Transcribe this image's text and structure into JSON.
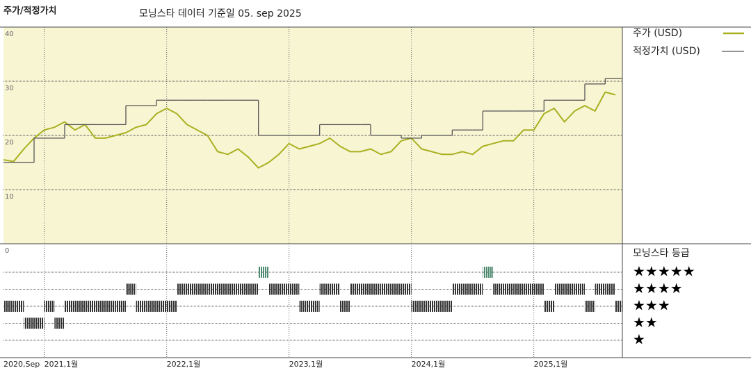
{
  "chart_data": {
    "type": "line",
    "title": "주가/적정가치",
    "subtitle": "모닝스타 데이터 기준일 05. sep 2025",
    "x": [
      "2020-09",
      "2020-10",
      "2020-11",
      "2020-12",
      "2021-01",
      "2021-02",
      "2021-03",
      "2021-04",
      "2021-05",
      "2021-06",
      "2021-07",
      "2021-08",
      "2021-09",
      "2021-10",
      "2021-11",
      "2021-12",
      "2022-01",
      "2022-02",
      "2022-03",
      "2022-04",
      "2022-05",
      "2022-06",
      "2022-07",
      "2022-08",
      "2022-09",
      "2022-10",
      "2022-11",
      "2022-12",
      "2023-01",
      "2023-02",
      "2023-03",
      "2023-04",
      "2023-05",
      "2023-06",
      "2023-07",
      "2023-08",
      "2023-09",
      "2023-10",
      "2023-11",
      "2023-12",
      "2024-01",
      "2024-02",
      "2024-03",
      "2024-04",
      "2024-05",
      "2024-06",
      "2024-07",
      "2024-08",
      "2024-09",
      "2024-10",
      "2024-11",
      "2024-12",
      "2025-01",
      "2025-02",
      "2025-03",
      "2025-04",
      "2025-05",
      "2025-06",
      "2025-07",
      "2025-08",
      "2025-09"
    ],
    "series": [
      {
        "name": "주가 (USD)",
        "color": "#a9b020",
        "step": false,
        "values": [
          15.5,
          15.2,
          17.5,
          19.5,
          21,
          21.5,
          22.5,
          21,
          22,
          19.5,
          19.5,
          20,
          20.5,
          21.5,
          22,
          24,
          25,
          24,
          22,
          21,
          20,
          17,
          16.5,
          17.5,
          16,
          14,
          15,
          16.5,
          18.5,
          17.5,
          18,
          18.5,
          19.5,
          18,
          17,
          17,
          17.5,
          16.5,
          17,
          19,
          19.5,
          17.5,
          17,
          16.5,
          16.5,
          17,
          16.5,
          18,
          18.5,
          19,
          19,
          21,
          21,
          24,
          25,
          22.5,
          24.5,
          25.5,
          24.5,
          28,
          27.5
        ]
      },
      {
        "name": "적정가치 (USD)",
        "color": "#555555",
        "step": true,
        "values": [
          15,
          15,
          15,
          19.5,
          19.5,
          19.5,
          22,
          22,
          22,
          22,
          22,
          22,
          25.5,
          25.5,
          25.5,
          26.5,
          26.5,
          26.5,
          26.5,
          26.5,
          26.5,
          26.5,
          26.5,
          26.5,
          26.5,
          20,
          20,
          20,
          20,
          20,
          20,
          22,
          22,
          22,
          22,
          22,
          20,
          20,
          20,
          19.5,
          19.5,
          20,
          20,
          20,
          21,
          21,
          21,
          24.5,
          24.5,
          24.5,
          24.5,
          24.5,
          24.5,
          26.5,
          26.5,
          26.5,
          26.5,
          29.5,
          29.5,
          30.5,
          30.5
        ]
      }
    ],
    "ylim": [
      0,
      40
    ],
    "yticks": [
      0,
      10,
      20,
      30,
      40
    ],
    "grid": true,
    "xticks": [
      {
        "value": "2020-09",
        "label": "2020,Sep"
      },
      {
        "value": "2021-01",
        "label": "2021,1월"
      },
      {
        "value": "2022-01",
        "label": "2022,1월"
      },
      {
        "value": "2023-01",
        "label": "2023,1월"
      },
      {
        "value": "2024-01",
        "label": "2024,1월"
      },
      {
        "value": "2025-01",
        "label": "2025,1월"
      }
    ],
    "rating_title": "모닝스타 등급",
    "rating_ticks": [
      {
        "value": 5,
        "label": "★★★★★"
      },
      {
        "value": 4,
        "label": "★★★★"
      },
      {
        "value": 3,
        "label": "★★★"
      },
      {
        "value": 2,
        "label": "★★"
      },
      {
        "value": 1,
        "label": "★"
      }
    ],
    "rating_colors": {
      "top": "#4d8a70",
      "other": "#333333"
    },
    "ratings": [
      3,
      3,
      2,
      2,
      3,
      2,
      3,
      3,
      3,
      3,
      3,
      3,
      4,
      3,
      3,
      3,
      3,
      4,
      4,
      4,
      4,
      4,
      4,
      4,
      4,
      5,
      4,
      4,
      4,
      3,
      3,
      4,
      4,
      3,
      4,
      4,
      4,
      4,
      4,
      4,
      3,
      3,
      3,
      3,
      4,
      4,
      4,
      5,
      4,
      4,
      4,
      4,
      4,
      3,
      4,
      4,
      4,
      3,
      4,
      4,
      3
    ]
  }
}
